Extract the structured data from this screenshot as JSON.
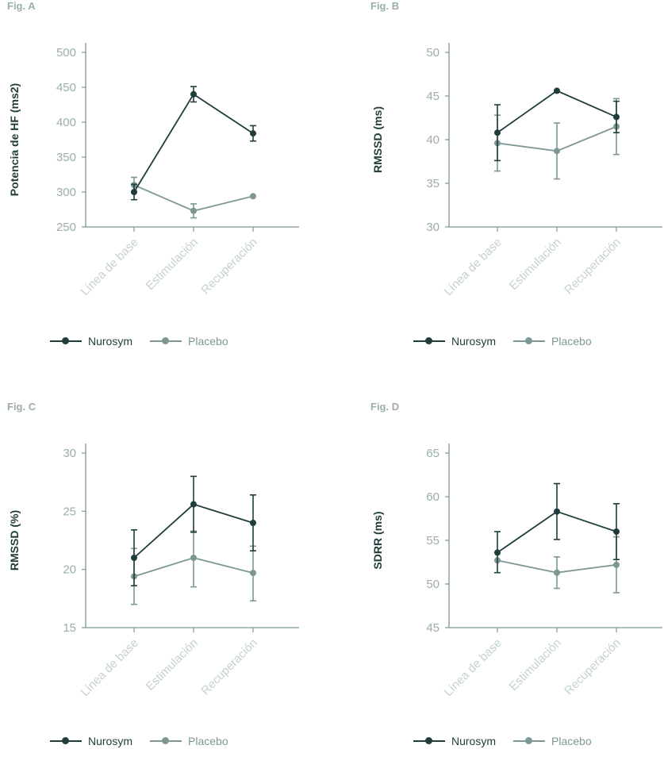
{
  "colors": {
    "nurosym": "#1f3d3a",
    "placebo": "#7d9894",
    "axis": "#7d9894",
    "tick_text": "#9aaeaa",
    "ylabel": "#1f3d3a"
  },
  "chart_data": [
    {
      "id": "A",
      "fig_label": "Fig. A",
      "type": "line",
      "ylabel": "Potencia de HF (ms2)",
      "ylim": [
        250,
        500
      ],
      "yticks": [
        250,
        300,
        350,
        400,
        450,
        500
      ],
      "categories": [
        "Línea de base",
        "Estimulación",
        "Recuperación"
      ],
      "series": [
        {
          "name": "Nurosym",
          "values": [
            300,
            440,
            384
          ],
          "err_low": [
            289,
            429,
            373
          ],
          "err_high": [
            311,
            451,
            395
          ]
        },
        {
          "name": "Placebo",
          "values": [
            310,
            273,
            294
          ],
          "err_low": [
            299,
            263,
            294
          ],
          "err_high": [
            321,
            283,
            294
          ]
        }
      ],
      "legend": [
        "Nurosym",
        "Placebo"
      ]
    },
    {
      "id": "B",
      "fig_label": "Fig. B",
      "type": "line",
      "ylabel": "RMSSD (ms)",
      "ylim": [
        30,
        50
      ],
      "yticks": [
        30,
        35,
        40,
        45,
        50
      ],
      "categories": [
        "Línea de base",
        "Estimulación",
        "Recuperación"
      ],
      "series": [
        {
          "name": "Nurosym",
          "values": [
            40.8,
            45.6,
            42.6
          ],
          "err_low": [
            37.6,
            45.6,
            40.8
          ],
          "err_high": [
            44.0,
            45.6,
            44.4
          ]
        },
        {
          "name": "Placebo",
          "values": [
            39.6,
            38.7,
            41.5
          ],
          "err_low": [
            36.4,
            35.5,
            38.3
          ],
          "err_high": [
            42.8,
            41.9,
            44.7
          ]
        }
      ],
      "legend": [
        "Nurosym",
        "Placebo"
      ]
    },
    {
      "id": "C",
      "fig_label": "Fig. C",
      "type": "line",
      "ylabel": "RMSSD (%)",
      "ylim": [
        15,
        30
      ],
      "yticks": [
        15,
        20,
        25,
        30
      ],
      "categories": [
        "Línea de base",
        "Estimulación",
        "Recuperación"
      ],
      "series": [
        {
          "name": "Nurosym",
          "values": [
            21.0,
            25.6,
            24.0
          ],
          "err_low": [
            18.6,
            23.2,
            21.6
          ],
          "err_high": [
            23.4,
            28.0,
            26.4
          ]
        },
        {
          "name": "Placebo",
          "values": [
            19.4,
            21.0,
            19.7
          ],
          "err_low": [
            17.0,
            18.5,
            17.3
          ],
          "err_high": [
            21.8,
            23.3,
            22.0
          ]
        }
      ],
      "legend": [
        "Nurosym",
        "Placebo"
      ]
    },
    {
      "id": "D",
      "fig_label": "Fig. D",
      "type": "line",
      "ylabel": "SDRR (ms)",
      "ylim": [
        45,
        65
      ],
      "yticks": [
        45,
        50,
        55,
        60,
        65
      ],
      "categories": [
        "Línea de base",
        "Estimulación",
        "Recuperación"
      ],
      "series": [
        {
          "name": "Nurosym",
          "values": [
            53.6,
            58.3,
            56.0
          ],
          "err_low": [
            51.3,
            55.1,
            52.8
          ],
          "err_high": [
            56.0,
            61.5,
            59.2
          ]
        },
        {
          "name": "Placebo",
          "values": [
            52.7,
            51.3,
            52.2
          ],
          "err_low": [
            52.7,
            49.5,
            49.0
          ],
          "err_high": [
            52.7,
            53.1,
            55.4
          ]
        }
      ],
      "legend": [
        "Nurosym",
        "Placebo"
      ]
    }
  ]
}
